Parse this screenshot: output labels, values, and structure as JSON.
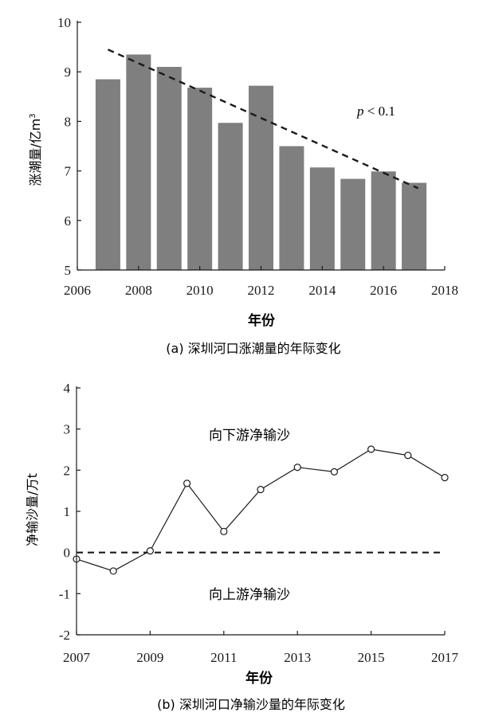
{
  "chart_data": [
    {
      "type": "bar",
      "caption": "(a) 深圳河口涨潮量的年际变化",
      "xlabel": "年份",
      "ylabel": "涨潮量/亿m³",
      "ylabel_main": "涨潮量/亿m",
      "ylabel_sup": "3",
      "xlim": [
        2006,
        2018
      ],
      "ylim": [
        5,
        10
      ],
      "xticks": [
        "2006",
        "2008",
        "2010",
        "2012",
        "2014",
        "2016",
        "2018"
      ],
      "yticks": [
        "5",
        "6",
        "7",
        "8",
        "9",
        "10"
      ],
      "x": [
        2007,
        2008,
        2009,
        2010,
        2011,
        2012,
        2013,
        2014,
        2015,
        2016,
        2017
      ],
      "values": [
        8.85,
        9.35,
        9.1,
        8.68,
        7.97,
        8.72,
        7.5,
        7.07,
        6.84,
        6.99,
        6.76
      ],
      "bar_color": "#7f7f7f",
      "trendline": {
        "style": "dashed",
        "x": [
          2007,
          2017
        ],
        "y": [
          9.45,
          6.65
        ]
      },
      "annotation": {
        "italic": "p",
        "rest": " < 0.1"
      }
    },
    {
      "type": "line",
      "caption": "(b) 深圳河口净输沙量的年际变化",
      "xlabel": "年份",
      "ylabel": "净输沙量/万t",
      "xlim": [
        2007,
        2017
      ],
      "ylim": [
        -2,
        4
      ],
      "xticks": [
        "2007",
        "2009",
        "2011",
        "2013",
        "2015",
        "2017"
      ],
      "yticks": [
        "-2",
        "-1",
        "0",
        "1",
        "2",
        "3",
        "4"
      ],
      "x": [
        2007,
        2008,
        2009,
        2010,
        2011,
        2012,
        2013,
        2014,
        2015,
        2016,
        2017
      ],
      "values": [
        -0.16,
        -0.45,
        0.04,
        1.68,
        0.51,
        1.53,
        2.07,
        1.96,
        2.51,
        2.36,
        1.82
      ],
      "zero_line": "dashed",
      "marker": "open-circle",
      "annotations": [
        "向下游净输沙",
        "向上游净输沙"
      ]
    }
  ]
}
